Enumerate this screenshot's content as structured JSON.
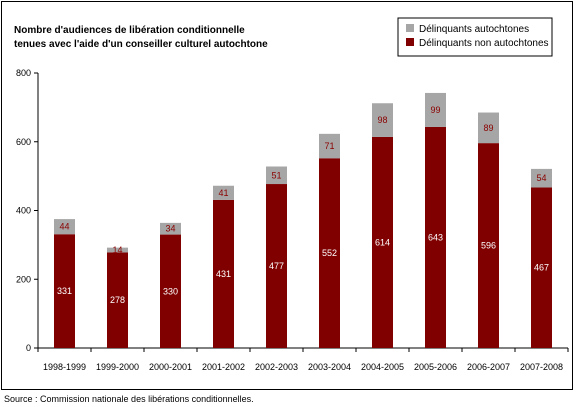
{
  "chart_data": {
    "type": "bar",
    "stacked": true,
    "title": [
      "Nombre d'audiences de libération conditionnelle",
      "tenues avec l'aide d'un conseiller culturel autochtone"
    ],
    "categories": [
      "1998-1999",
      "1999-2000",
      "2000-2001",
      "2001-2002",
      "2002-2003",
      "2003-2004",
      "2004-2005",
      "2005-2006",
      "2006-2007",
      "2007-2008"
    ],
    "series": [
      {
        "name": "Délinquants non autochtones",
        "color": "#800000",
        "values": [
          331,
          278,
          330,
          431,
          477,
          552,
          614,
          643,
          596,
          467
        ]
      },
      {
        "name": "Délinquants autochtones",
        "color": "#a6a6a6",
        "values": [
          44,
          14,
          34,
          41,
          51,
          71,
          98,
          99,
          89,
          54
        ]
      }
    ],
    "legend": {
      "placement": "top-right",
      "order": [
        "Délinquants autochtones",
        "Délinquants non autochtones"
      ]
    },
    "ylim": [
      0,
      800
    ],
    "yticks": [
      0,
      200,
      400,
      600,
      800
    ],
    "xlabel": "",
    "ylabel": "",
    "grid": false
  },
  "source": "Source : Commission nationale des libérations conditionnelles."
}
